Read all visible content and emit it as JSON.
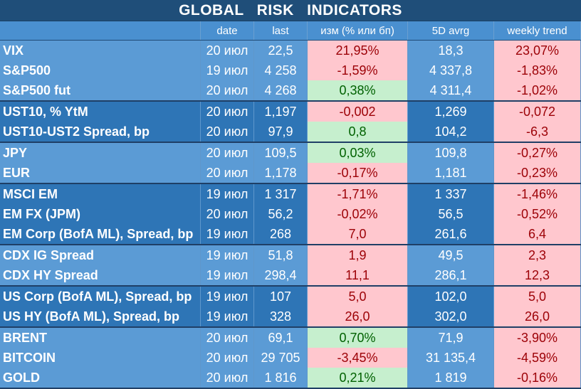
{
  "title": "GLOBAL   RISK   INDICATORS",
  "columns": [
    "",
    "date",
    "last",
    "изм (% или бп)",
    "5D avrg",
    "weekly trend"
  ],
  "groups": [
    {
      "shade": "light",
      "rows": [
        {
          "name": "VIX",
          "date": "20 июл",
          "last": "22,5",
          "chg": "21,95%",
          "chg_state": "neg",
          "avg5d": "18,3",
          "trend": "23,07%",
          "trend_state": "neg"
        },
        {
          "name": "S&P500",
          "date": "19 июл",
          "last": "4 258",
          "chg": "-1,59%",
          "chg_state": "neg",
          "avg5d": "4 337,8",
          "trend": "-1,83%",
          "trend_state": "neg"
        },
        {
          "name": "S&P500 fut",
          "date": "20 июл",
          "last": "4 268",
          "chg": "0,38%",
          "chg_state": "pos",
          "avg5d": "4 311,4",
          "trend": "-1,02%",
          "trend_state": "neg"
        }
      ]
    },
    {
      "shade": "dark",
      "rows": [
        {
          "name": "UST10, % YtM",
          "date": "20 июл",
          "last": "1,197",
          "chg": "-0,002",
          "chg_state": "neg",
          "avg5d": "1,269",
          "trend": "-0,072",
          "trend_state": "neg"
        },
        {
          "name": "UST10-UST2 Spread, bp",
          "date": "20 июл",
          "last": "97,9",
          "chg": "0,8",
          "chg_state": "pos",
          "avg5d": "104,2",
          "trend": "-6,3",
          "trend_state": "neg"
        }
      ]
    },
    {
      "shade": "light",
      "rows": [
        {
          "name": "JPY",
          "date": "20 июл",
          "last": "109,5",
          "chg": "0,03%",
          "chg_state": "pos",
          "avg5d": "109,8",
          "trend": "-0,27%",
          "trend_state": "neg"
        },
        {
          "name": "EUR",
          "date": "20 июл",
          "last": "1,178",
          "chg": "-0,17%",
          "chg_state": "neg",
          "avg5d": "1,181",
          "trend": "-0,23%",
          "trend_state": "neg"
        }
      ]
    },
    {
      "shade": "dark",
      "rows": [
        {
          "name": "MSCI EM",
          "date": "19 июл",
          "last": "1 317",
          "chg": "-1,71%",
          "chg_state": "neg",
          "avg5d": "1 337",
          "trend": "-1,46%",
          "trend_state": "neg"
        },
        {
          "name": "EM FX (JPM)",
          "date": "20 июл",
          "last": "56,2",
          "chg": "-0,02%",
          "chg_state": "neg",
          "avg5d": "56,5",
          "trend": "-0,52%",
          "trend_state": "neg"
        },
        {
          "name": "EM Corp (BofA ML), Spread, bp",
          "date": "19 июл",
          "last": "268",
          "chg": "7,0",
          "chg_state": "neg",
          "avg5d": "261,6",
          "trend": "6,4",
          "trend_state": "neg"
        }
      ]
    },
    {
      "shade": "light",
      "rows": [
        {
          "name": "CDX IG Spread",
          "date": "19 июл",
          "last": "51,8",
          "chg": "1,9",
          "chg_state": "neg",
          "avg5d": "49,5",
          "trend": "2,3",
          "trend_state": "neg"
        },
        {
          "name": "CDX HY Spread",
          "date": "19 июл",
          "last": "298,4",
          "chg": "11,1",
          "chg_state": "neg",
          "avg5d": "286,1",
          "trend": "12,3",
          "trend_state": "neg"
        }
      ]
    },
    {
      "shade": "dark",
      "rows": [
        {
          "name": "US Corp (BofA ML), Spread, bp",
          "date": "19 июл",
          "last": "107",
          "chg": "5,0",
          "chg_state": "neg",
          "avg5d": "102,0",
          "trend": "5,0",
          "trend_state": "neg"
        },
        {
          "name": "US HY (BofA ML), Spread, bp",
          "date": "19 июл",
          "last": "328",
          "chg": "26,0",
          "chg_state": "neg",
          "avg5d": "302,0",
          "trend": "26,0",
          "trend_state": "neg"
        }
      ]
    },
    {
      "shade": "light",
      "rows": [
        {
          "name": "BRENT",
          "date": "20 июл",
          "last": "69,1",
          "chg": "0,70%",
          "chg_state": "pos",
          "avg5d": "71,9",
          "trend": "-3,90%",
          "trend_state": "neg"
        },
        {
          "name": "BITCOIN",
          "date": "20 июл",
          "last": "29 705",
          "chg": "-3,45%",
          "chg_state": "neg",
          "avg5d": "31 135,4",
          "trend": "-4,59%",
          "trend_state": "neg"
        },
        {
          "name": "GOLD",
          "date": "20 июл",
          "last": "1 816",
          "chg": "0,21%",
          "chg_state": "pos",
          "avg5d": "1 819",
          "trend": "-0,16%",
          "trend_state": "neg"
        }
      ]
    }
  ],
  "colors": {
    "title_bg": "#1f4e79",
    "light_bg": "#5b9bd5",
    "dark_bg": "#2e75b6",
    "neg_bg": "#ffc7ce",
    "neg_text": "#9c0006",
    "pos_bg": "#c6efce",
    "pos_text": "#006100"
  }
}
